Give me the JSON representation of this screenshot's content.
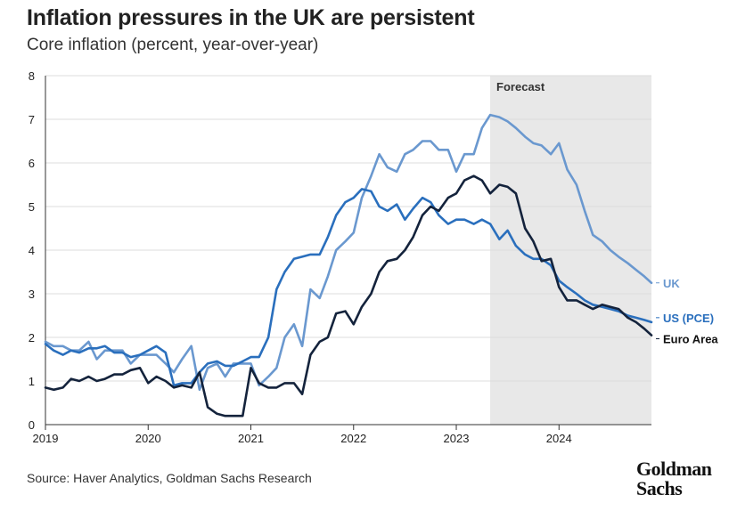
{
  "header": {
    "title": "Inflation pressures in the UK are persistent",
    "subtitle": "Core inflation (percent, year-over-year)"
  },
  "footer": {
    "source": "Source: Haver Analytics, Goldman Sachs Research",
    "logo_line1": "Goldman",
    "logo_line2": "Sachs"
  },
  "chart_data": {
    "type": "line",
    "title": "Inflation pressures in the UK are persistent",
    "subtitle": "Core inflation (percent, year-over-year)",
    "xlim": [
      2019,
      2024.9
    ],
    "ylim": [
      0,
      8
    ],
    "x_ticks": [
      "2019",
      "2020",
      "2021",
      "2022",
      "2023",
      "2024"
    ],
    "y_ticks": [
      "0",
      "1",
      "2",
      "3",
      "4",
      "5",
      "6",
      "7",
      "8"
    ],
    "grid": "horizontal",
    "forecast": {
      "label": "Forecast",
      "start": 2023.33,
      "end": 2024.9,
      "color": "#e8e8e8"
    },
    "series": [
      {
        "name": "UK",
        "color": "#6a98cf",
        "x": [
          2019.0,
          2019.08,
          2019.17,
          2019.25,
          2019.33,
          2019.42,
          2019.5,
          2019.58,
          2019.67,
          2019.75,
          2019.83,
          2019.92,
          2020.0,
          2020.08,
          2020.17,
          2020.25,
          2020.33,
          2020.42,
          2020.5,
          2020.58,
          2020.67,
          2020.75,
          2020.83,
          2020.92,
          2021.0,
          2021.08,
          2021.17,
          2021.25,
          2021.33,
          2021.42,
          2021.5,
          2021.58,
          2021.67,
          2021.75,
          2021.83,
          2021.92,
          2022.0,
          2022.08,
          2022.17,
          2022.25,
          2022.33,
          2022.42,
          2022.5,
          2022.58,
          2022.67,
          2022.75,
          2022.83,
          2022.92,
          2023.0,
          2023.08,
          2023.17,
          2023.25,
          2023.33,
          2023.42,
          2023.5,
          2023.58,
          2023.67,
          2023.75,
          2023.83,
          2023.92,
          2024.0,
          2024.08,
          2024.17,
          2024.25,
          2024.33,
          2024.42,
          2024.5,
          2024.58,
          2024.67,
          2024.75,
          2024.83,
          2024.9
        ],
        "values": [
          1.9,
          1.8,
          1.8,
          1.7,
          1.7,
          1.9,
          1.5,
          1.7,
          1.7,
          1.7,
          1.4,
          1.6,
          1.6,
          1.6,
          1.4,
          1.2,
          1.5,
          1.8,
          0.8,
          1.3,
          1.4,
          1.1,
          1.4,
          1.4,
          1.4,
          0.9,
          1.1,
          1.3,
          2.0,
          2.3,
          1.8,
          3.1,
          2.9,
          3.4,
          4.0,
          4.2,
          4.4,
          5.2,
          5.7,
          6.2,
          5.9,
          5.8,
          6.2,
          6.3,
          6.5,
          6.5,
          6.3,
          6.3,
          5.8,
          6.2,
          6.2,
          6.8,
          7.1,
          7.05,
          6.95,
          6.8,
          6.6,
          6.45,
          6.4,
          6.2,
          6.45,
          5.85,
          5.5,
          4.9,
          4.35,
          4.2,
          4.0,
          3.85,
          3.7,
          3.55,
          3.4,
          3.25
        ]
      },
      {
        "name": "US (PCE)",
        "color": "#2a6fbd",
        "x": [
          2019.0,
          2019.08,
          2019.17,
          2019.25,
          2019.33,
          2019.42,
          2019.5,
          2019.58,
          2019.67,
          2019.75,
          2019.83,
          2019.92,
          2020.0,
          2020.08,
          2020.17,
          2020.25,
          2020.33,
          2020.42,
          2020.5,
          2020.58,
          2020.67,
          2020.75,
          2020.83,
          2020.92,
          2021.0,
          2021.08,
          2021.17,
          2021.25,
          2021.33,
          2021.42,
          2021.5,
          2021.58,
          2021.67,
          2021.75,
          2021.83,
          2021.92,
          2022.0,
          2022.08,
          2022.17,
          2022.25,
          2022.33,
          2022.42,
          2022.5,
          2022.58,
          2022.67,
          2022.75,
          2022.83,
          2022.92,
          2023.0,
          2023.08,
          2023.17,
          2023.25,
          2023.33,
          2023.42,
          2023.5,
          2023.58,
          2023.67,
          2023.75,
          2023.83,
          2023.92,
          2024.0,
          2024.08,
          2024.17,
          2024.25,
          2024.33,
          2024.42,
          2024.5,
          2024.58,
          2024.67,
          2024.75,
          2024.83,
          2024.9
        ],
        "values": [
          1.85,
          1.7,
          1.6,
          1.7,
          1.65,
          1.75,
          1.75,
          1.8,
          1.65,
          1.65,
          1.55,
          1.6,
          1.7,
          1.8,
          1.65,
          0.9,
          0.95,
          0.95,
          1.2,
          1.4,
          1.45,
          1.35,
          1.35,
          1.45,
          1.55,
          1.55,
          2.0,
          3.1,
          3.5,
          3.8,
          3.85,
          3.9,
          3.9,
          4.3,
          4.8,
          5.1,
          5.2,
          5.4,
          5.35,
          5.0,
          4.9,
          5.05,
          4.7,
          4.95,
          5.2,
          5.1,
          4.8,
          4.6,
          4.7,
          4.7,
          4.6,
          4.7,
          4.6,
          4.25,
          4.45,
          4.1,
          3.9,
          3.8,
          3.8,
          3.65,
          3.3,
          3.15,
          3.0,
          2.85,
          2.75,
          2.7,
          2.65,
          2.6,
          2.5,
          2.45,
          2.4,
          2.35
        ]
      },
      {
        "name": "Euro Area",
        "color": "#14233c",
        "x": [
          2019.0,
          2019.08,
          2019.17,
          2019.25,
          2019.33,
          2019.42,
          2019.5,
          2019.58,
          2019.67,
          2019.75,
          2019.83,
          2019.92,
          2020.0,
          2020.08,
          2020.17,
          2020.25,
          2020.33,
          2020.42,
          2020.5,
          2020.58,
          2020.67,
          2020.75,
          2020.83,
          2020.92,
          2021.0,
          2021.08,
          2021.17,
          2021.25,
          2021.33,
          2021.42,
          2021.5,
          2021.58,
          2021.67,
          2021.75,
          2021.83,
          2021.92,
          2022.0,
          2022.08,
          2022.17,
          2022.25,
          2022.33,
          2022.42,
          2022.5,
          2022.58,
          2022.67,
          2022.75,
          2022.83,
          2022.92,
          2023.0,
          2023.08,
          2023.17,
          2023.25,
          2023.33,
          2023.42,
          2023.5,
          2023.58,
          2023.67,
          2023.75,
          2023.83,
          2023.92,
          2024.0,
          2024.08,
          2024.17,
          2024.25,
          2024.33,
          2024.42,
          2024.5,
          2024.58,
          2024.67,
          2024.75,
          2024.83,
          2024.9
        ],
        "values": [
          0.85,
          0.8,
          0.85,
          1.05,
          1.0,
          1.1,
          1.0,
          1.05,
          1.15,
          1.15,
          1.25,
          1.3,
          0.95,
          1.1,
          1.0,
          0.85,
          0.9,
          0.85,
          1.2,
          0.4,
          0.25,
          0.2,
          0.2,
          0.2,
          1.3,
          0.95,
          0.85,
          0.85,
          0.95,
          0.95,
          0.7,
          1.6,
          1.9,
          2.0,
          2.55,
          2.6,
          2.3,
          2.7,
          3.0,
          3.5,
          3.75,
          3.8,
          4.0,
          4.3,
          4.8,
          5.0,
          4.9,
          5.2,
          5.3,
          5.6,
          5.7,
          5.6,
          5.3,
          5.5,
          5.45,
          5.3,
          4.5,
          4.2,
          3.75,
          3.8,
          3.15,
          2.85,
          2.85,
          2.75,
          2.65,
          2.75,
          2.7,
          2.65,
          2.45,
          2.35,
          2.2,
          2.05
        ]
      }
    ]
  }
}
